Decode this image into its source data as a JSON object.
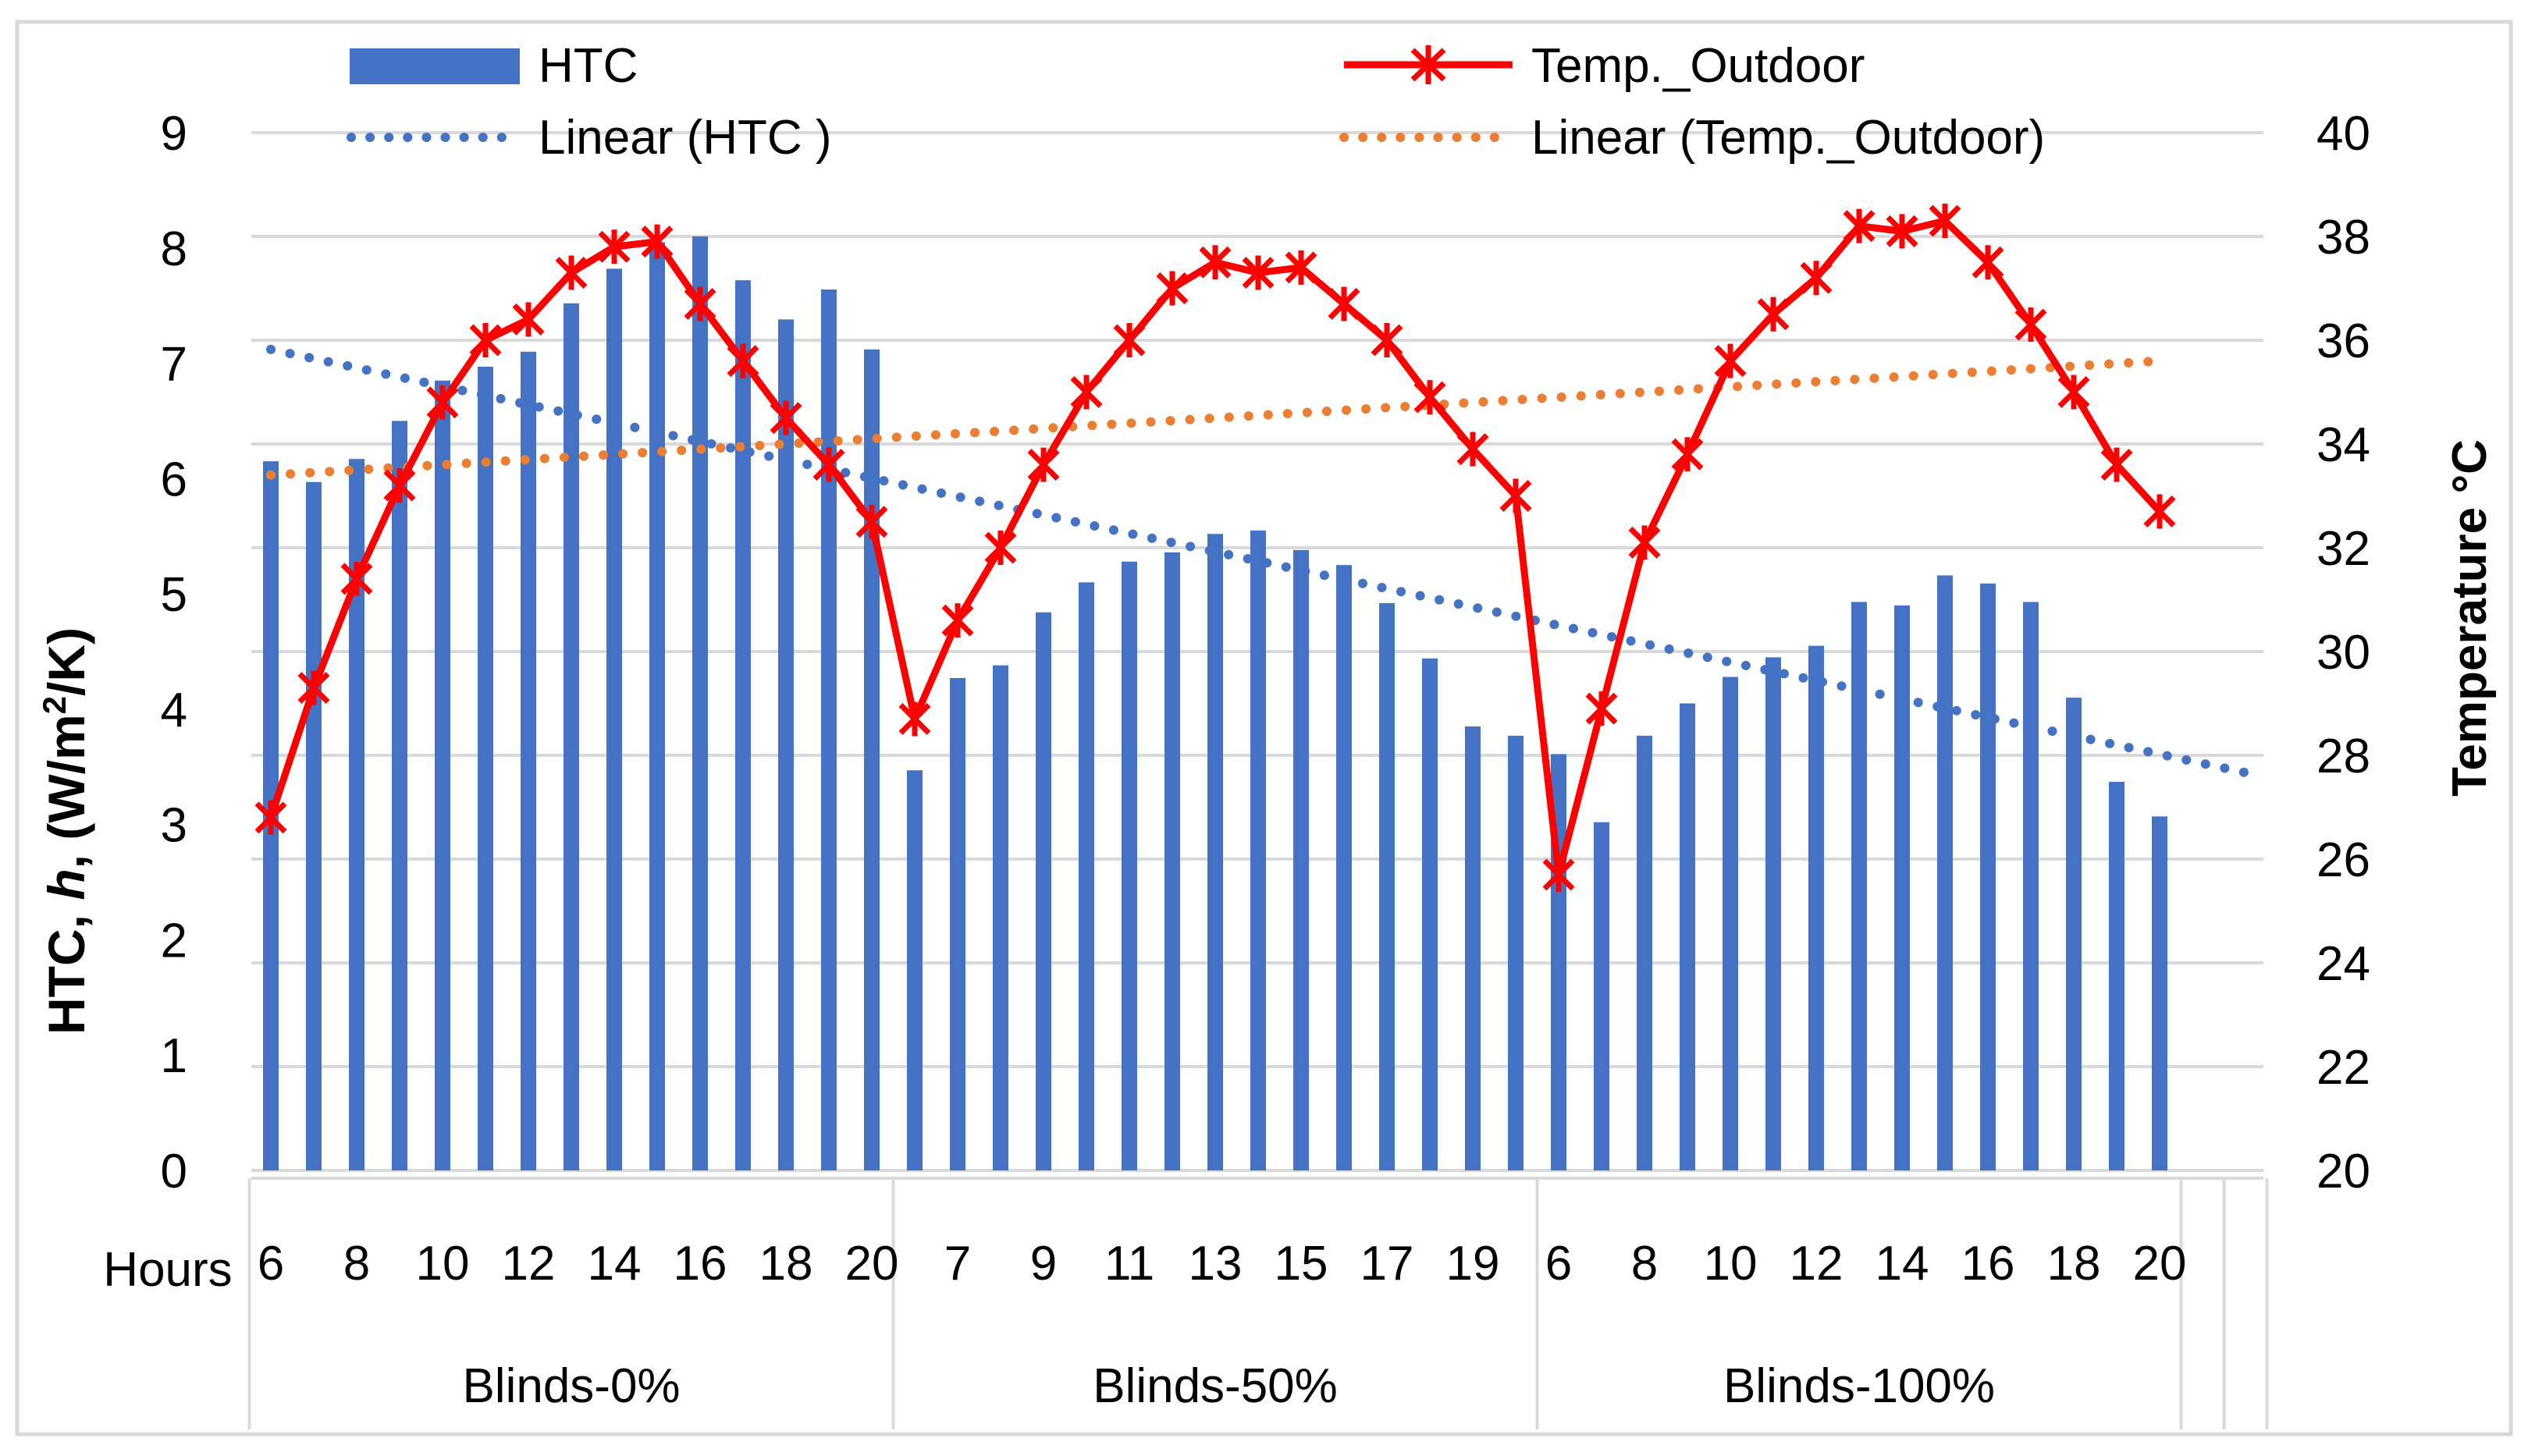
{
  "colors": {
    "htc_bar": "#4472C4",
    "temp_line": "#FF0000",
    "htc_trend": "#4472C4",
    "temp_trend": "#ED7D31",
    "grid": "#D9D9D9",
    "frame": "#D9D9D9"
  },
  "legend": {
    "htc": "HTC",
    "temp": "Temp._Outdoor",
    "htc_trend": "Linear (HTC )",
    "temp_trend": "Linear (Temp._Outdoor)"
  },
  "axes": {
    "y_left_title_parts": [
      "HTC, ",
      "h",
      ", (W/m",
      "2",
      "/K)"
    ],
    "y_right_title": "Temperature °C",
    "x_title": "Hours"
  },
  "chart_data": {
    "type": "bar",
    "title": "",
    "xlabel": "Hours",
    "ylabel": "HTC, h, (W/m2/K)",
    "y2label": "Temperature °C",
    "ylim": [
      0,
      9
    ],
    "y2lim": [
      20,
      40
    ],
    "y_ticks": [
      0,
      1,
      2,
      3,
      4,
      5,
      6,
      7,
      8,
      9
    ],
    "y2_ticks": [
      20,
      22,
      24,
      26,
      28,
      30,
      32,
      34,
      36,
      38,
      40
    ],
    "groups": [
      {
        "label": "Blinds-0%",
        "start": 0,
        "count": 15
      },
      {
        "label": "Blinds-50%",
        "start": 15,
        "count": 15
      },
      {
        "label": "Blinds-100%",
        "start": 30,
        "count": 15
      }
    ],
    "total_slots": 47,
    "x_tick_labels": [
      "6",
      "8",
      "10",
      "12",
      "14",
      "16",
      "18",
      "20",
      "7",
      "9",
      "11",
      "13",
      "15",
      "17",
      "19",
      "6",
      "8",
      "10",
      "12",
      "14",
      "16",
      "18",
      "20"
    ],
    "x_tick_slots": [
      0,
      2,
      4,
      6,
      8,
      10,
      12,
      14,
      16,
      18,
      20,
      22,
      24,
      26,
      28,
      30,
      32,
      34,
      36,
      38,
      40,
      42,
      44
    ],
    "categories": [
      "6",
      "7",
      "8",
      "9",
      "10",
      "11",
      "12",
      "13",
      "14",
      "15",
      "16",
      "17",
      "18",
      "19",
      "20",
      "6",
      "7",
      "8",
      "9",
      "10",
      "11",
      "12",
      "13",
      "14",
      "15",
      "16",
      "17",
      "18",
      "19",
      "20",
      "6",
      "7",
      "8",
      "9",
      "10",
      "11",
      "12",
      "13",
      "14",
      "15",
      "16",
      "17",
      "18",
      "19",
      "20"
    ],
    "series": [
      {
        "name": "HTC",
        "kind": "bar",
        "axis": "left",
        "values": [
          6.15,
          5.97,
          6.17,
          6.5,
          6.85,
          6.97,
          7.1,
          7.52,
          7.82,
          8.05,
          8.1,
          7.72,
          7.38,
          7.64,
          7.12,
          3.47,
          4.27,
          4.38,
          4.84,
          5.1,
          5.28,
          5.36,
          5.52,
          5.55,
          5.38,
          5.25,
          4.92,
          4.44,
          3.85,
          3.77,
          3.61,
          3.02,
          3.77,
          4.05,
          4.28,
          4.45,
          4.55,
          4.93,
          4.9,
          5.16,
          5.09,
          4.93,
          4.1,
          3.37,
          3.07
        ]
      },
      {
        "name": "Temp._Outdoor",
        "kind": "line",
        "axis": "right",
        "values": [
          26.8,
          29.3,
          31.4,
          33.2,
          34.8,
          36.0,
          36.4,
          37.3,
          37.8,
          37.9,
          36.7,
          35.6,
          34.5,
          33.6,
          32.5,
          28.7,
          30.6,
          32.0,
          33.6,
          35.0,
          36.0,
          37.0,
          37.5,
          37.3,
          37.4,
          36.7,
          36.0,
          34.9,
          33.9,
          33.0,
          25.7,
          28.9,
          32.1,
          33.8,
          35.6,
          36.5,
          37.2,
          38.2,
          38.1,
          38.3,
          37.5,
          36.3,
          35.0,
          33.6,
          32.7
        ]
      }
    ],
    "trendlines": [
      {
        "name": "Linear (HTC )",
        "axis": "left",
        "start": 7.12,
        "end": 3.45,
        "end_slot": 46
      },
      {
        "name": "Linear (Temp._Outdoor)",
        "axis": "right",
        "start": 33.4,
        "end": 35.6,
        "end_slot": 44
      }
    ]
  }
}
